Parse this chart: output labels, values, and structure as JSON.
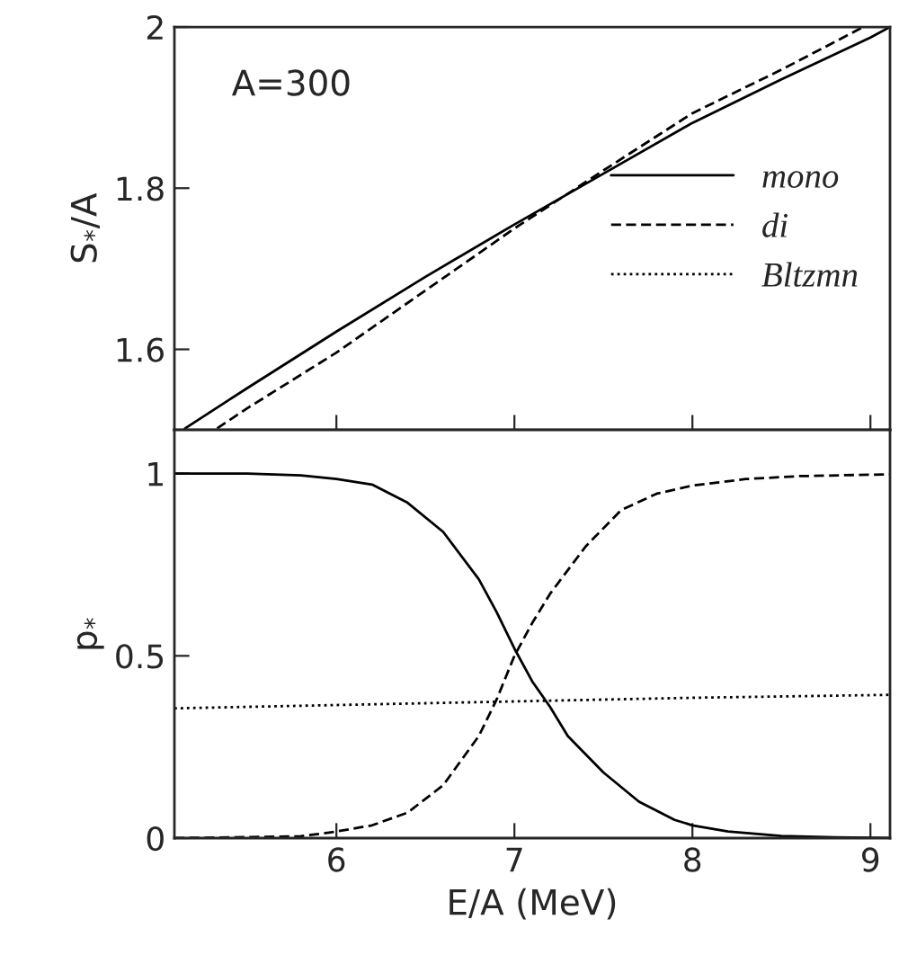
{
  "chart_data": [
    {
      "type": "line",
      "ylabel": "S$_{*}$/A",
      "annotations": [
        "A=300"
      ],
      "xlim": [
        5.09,
        9.11
      ],
      "xticks": [
        6,
        7,
        8,
        9
      ],
      "ylim": [
        1.5,
        2.0
      ],
      "yticks": [
        1.6,
        1.8,
        2
      ],
      "tick_labels": "y",
      "grid": false,
      "legend": "right",
      "series": [
        {
          "name": "mono",
          "color": "#000000",
          "line_style": "solid",
          "x": [
            5.15,
            5.5,
            6,
            6.5,
            7,
            7.5,
            8,
            8.5,
            9,
            9.11
          ],
          "values": [
            1.502,
            1.552,
            1.622,
            1.69,
            1.755,
            1.818,
            1.881,
            1.935,
            1.987,
            2.0
          ]
        },
        {
          "name": "di",
          "color": "#000000",
          "line_style": "dashed",
          "x": [
            5.33,
            5.5,
            6,
            6.5,
            7,
            7.5,
            8,
            8.5,
            8.96
          ],
          "values": [
            1.502,
            1.527,
            1.596,
            1.673,
            1.75,
            1.822,
            1.893,
            1.947,
            2.0
          ]
        },
        {
          "name": "Bltzmn",
          "color": "#000000",
          "line_style": "dotted"
        }
      ]
    },
    {
      "type": "line",
      "xlabel": "E/A (MeV)",
      "ylabel": "p$_{*}$",
      "xlim": [
        5.09,
        9.11
      ],
      "xticks": [
        6,
        7,
        8,
        9
      ],
      "ylim": [
        0,
        1.12
      ],
      "yticks": [
        0,
        0.5,
        1
      ],
      "grid": false,
      "series": [
        {
          "color": "#000000",
          "line_style": "solid",
          "x": [
            5.09,
            5.5,
            5.8,
            6.0,
            6.2,
            6.4,
            6.6,
            6.8,
            6.9,
            7.0,
            7.1,
            7.2,
            7.3,
            7.5,
            7.7,
            7.9,
            8.0,
            8.2,
            8.5,
            8.8,
            9.11
          ],
          "values": [
            1.0,
            1.0,
            0.995,
            0.985,
            0.97,
            0.92,
            0.84,
            0.71,
            0.62,
            0.52,
            0.43,
            0.36,
            0.28,
            0.18,
            0.1,
            0.05,
            0.035,
            0.018,
            0.006,
            0.002,
            0.0
          ]
        },
        {
          "color": "#000000",
          "line_style": "dashed",
          "x": [
            5.09,
            5.8,
            6.0,
            6.2,
            6.4,
            6.6,
            6.8,
            6.9,
            7.0,
            7.1,
            7.2,
            7.4,
            7.6,
            7.8,
            8.0,
            8.3,
            8.6,
            9.11
          ],
          "values": [
            0.0,
            0.005,
            0.018,
            0.035,
            0.07,
            0.145,
            0.28,
            0.38,
            0.5,
            0.59,
            0.67,
            0.8,
            0.9,
            0.945,
            0.967,
            0.985,
            0.993,
            0.998
          ]
        },
        {
          "color": "#000000",
          "line_style": "dotted",
          "x": [
            5.09,
            6,
            7,
            8,
            9.11
          ],
          "values": [
            0.356,
            0.365,
            0.375,
            0.385,
            0.393
          ]
        }
      ]
    }
  ]
}
